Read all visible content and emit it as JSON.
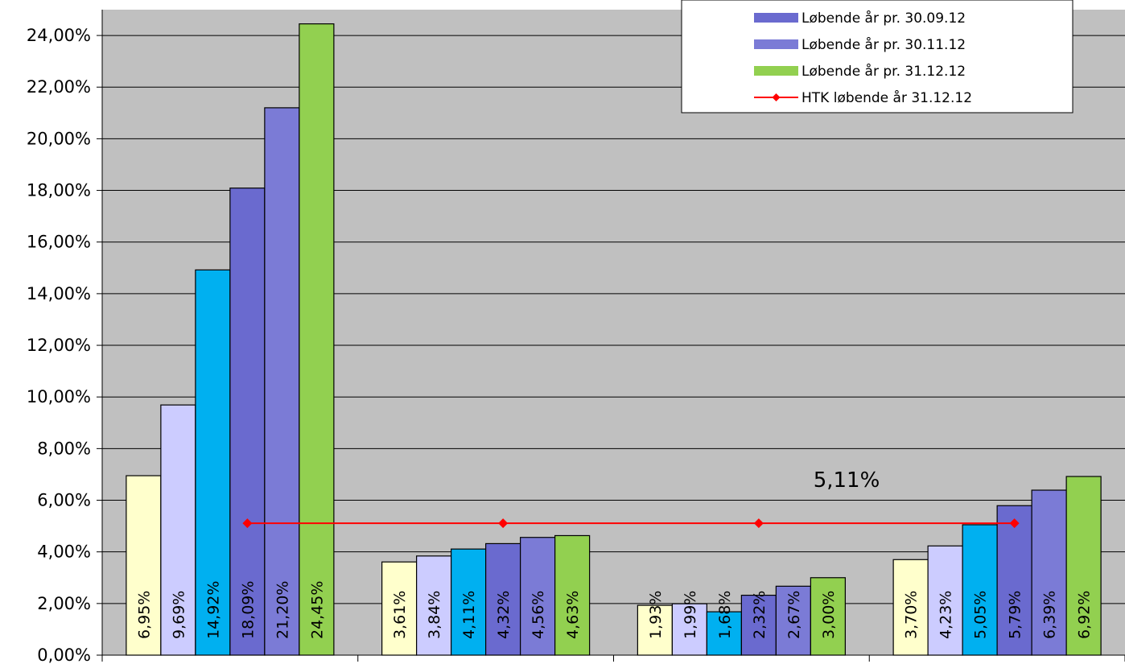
{
  "chart_data": {
    "type": "bar",
    "ylim": [
      0,
      25
    ],
    "yticks": [
      0,
      2,
      4,
      6,
      8,
      10,
      12,
      14,
      16,
      18,
      20,
      22,
      24
    ],
    "ytick_labels": [
      "0,00%",
      "2,00%",
      "4,00%",
      "6,00%",
      "8,00%",
      "10,00%",
      "12,00%",
      "14,00%",
      "16,00%",
      "18,00%",
      "20,00%",
      "22,00%",
      "24,00%"
    ],
    "grid": true,
    "legend_position": "top-right",
    "categories": [
      "",
      "",
      "",
      ""
    ],
    "series": [
      {
        "color": "#ffffcc",
        "values": [
          6.95,
          3.61,
          1.93,
          3.7
        ],
        "labels": [
          "6,95%",
          "3,61%",
          "1,93%",
          "3,70%"
        ]
      },
      {
        "color": "#ccccff",
        "values": [
          9.69,
          3.84,
          1.99,
          4.23
        ],
        "labels": [
          "9,69%",
          "3,84%",
          "1,99%",
          "4,23%"
        ]
      },
      {
        "color": "#00b0f0",
        "values": [
          14.92,
          4.11,
          1.68,
          5.05
        ],
        "labels": [
          "14,92%",
          "4,11%",
          "1,68%",
          "5,05%"
        ]
      },
      {
        "name": "Løbende år pr. 30.09.12",
        "color": "#6a6acf",
        "values": [
          18.09,
          4.32,
          2.32,
          5.79
        ],
        "labels": [
          "18,09%",
          "4,32%",
          "2,32%",
          "5,79%"
        ]
      },
      {
        "name": "Løbende år pr. 30.11.12",
        "color": "#7b7bd6",
        "values": [
          21.2,
          4.56,
          2.67,
          6.39
        ],
        "labels": [
          "21,20%",
          "4,56%",
          "2,67%",
          "6,39%"
        ]
      },
      {
        "name": "Løbende år pr. 31.12.12",
        "color": "#92d050",
        "values": [
          24.45,
          4.63,
          3.0,
          6.92
        ],
        "labels": [
          "24,45%",
          "4,63%",
          "3,00%",
          "6,92%"
        ]
      }
    ],
    "line": {
      "name": "HTK løbende år 31.12.12",
      "color": "#ff0000",
      "values": [
        5.11,
        5.11,
        5.11,
        5.11
      ]
    },
    "annotation": "5,11%"
  }
}
